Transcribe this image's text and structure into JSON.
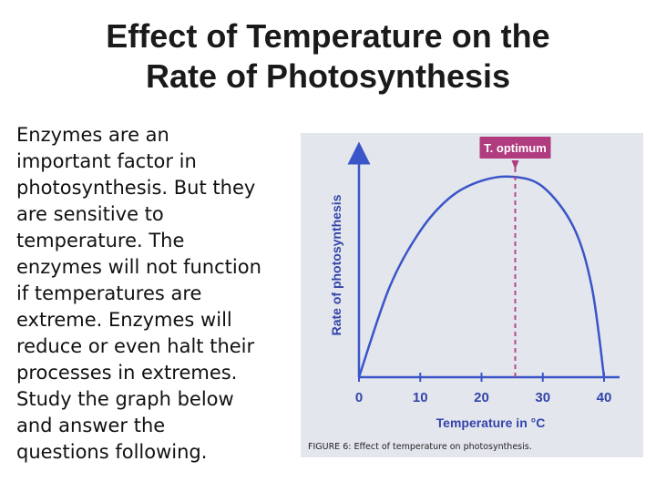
{
  "slide": {
    "title_lines": [
      "Effect of Temperature on the",
      "Rate of Photosynthesis"
    ],
    "body_lines": [
      "Enzymes are an",
      "important factor in",
      "photosynthesis. But they",
      "are sensitive to",
      "temperature. The",
      "enzymes will not function",
      "if temperatures are",
      "extreme. Enzymes will",
      "reduce or even halt their",
      "processes in extremes.",
      "Study the graph below",
      "and answer the",
      "questions following."
    ]
  },
  "chart_data": {
    "type": "line",
    "title": "",
    "xlabel": "Temperature in °C",
    "ylabel": "Rate of photosynthesis",
    "x_ticks": [
      0,
      10,
      20,
      30,
      40
    ],
    "xlim": [
      0,
      40
    ],
    "ylim": [
      0,
      1
    ],
    "y_tick_labels": "none",
    "series": [
      {
        "x": [
          0,
          5,
          10,
          15,
          20,
          25,
          30,
          35,
          38,
          40
        ],
        "y": [
          0.0,
          0.45,
          0.73,
          0.9,
          0.98,
          1.0,
          0.95,
          0.75,
          0.45,
          0.0
        ]
      }
    ],
    "annotation": {
      "label": "T. optimum",
      "x": 25.5
    },
    "caption": "FIGURE 6: Effect of temperature on photosynthesis.",
    "colors": {
      "curve": "#3a55c8",
      "axes": "#3a55c8",
      "optimum": "#b03b7e",
      "background": "#e3e6ed"
    },
    "grid": false,
    "legend": "none"
  }
}
